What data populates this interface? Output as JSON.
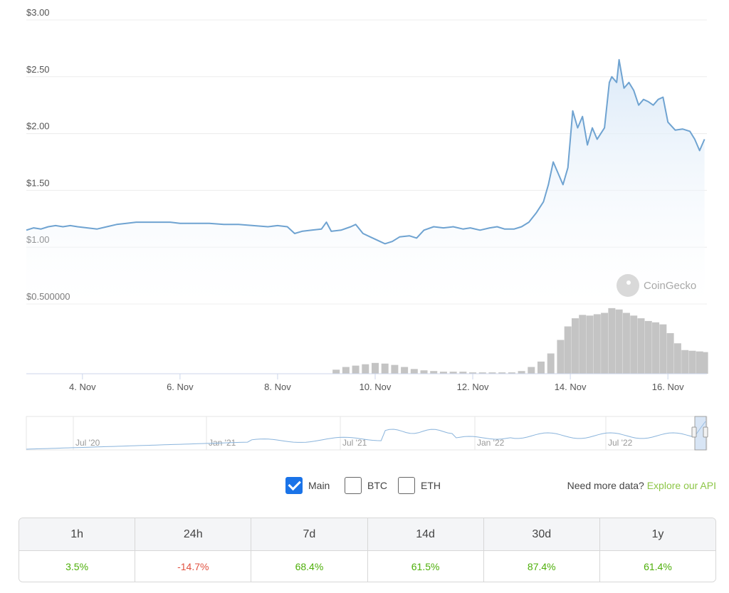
{
  "chart_data": {
    "type": "line",
    "y_axis": {
      "ticks": [
        "$3.00",
        "$2.50",
        "$2.00",
        "$1.50",
        "$1.00",
        "$0.500000"
      ],
      "ylim": [
        0.5,
        3.0
      ]
    },
    "x_axis": {
      "ticks": [
        "4. Nov",
        "6. Nov",
        "8. Nov",
        "10. Nov",
        "12. Nov",
        "14. Nov",
        "16. Nov"
      ],
      "xlim_days": [
        2.85,
        16.8
      ]
    },
    "series": [
      {
        "points": [
          [
            2.85,
            1.15
          ],
          [
            3.0,
            1.17
          ],
          [
            3.15,
            1.16
          ],
          [
            3.3,
            1.18
          ],
          [
            3.45,
            1.19
          ],
          [
            3.6,
            1.18
          ],
          [
            3.75,
            1.19
          ],
          [
            3.9,
            1.18
          ],
          [
            4.1,
            1.17
          ],
          [
            4.3,
            1.16
          ],
          [
            4.5,
            1.18
          ],
          [
            4.7,
            1.2
          ],
          [
            4.9,
            1.21
          ],
          [
            5.1,
            1.22
          ],
          [
            5.3,
            1.22
          ],
          [
            5.5,
            1.22
          ],
          [
            5.8,
            1.22
          ],
          [
            6.0,
            1.21
          ],
          [
            6.3,
            1.21
          ],
          [
            6.6,
            1.21
          ],
          [
            6.9,
            1.2
          ],
          [
            7.2,
            1.2
          ],
          [
            7.5,
            1.19
          ],
          [
            7.8,
            1.18
          ],
          [
            8.0,
            1.19
          ],
          [
            8.2,
            1.18
          ],
          [
            8.35,
            1.12
          ],
          [
            8.5,
            1.14
          ],
          [
            8.7,
            1.15
          ],
          [
            8.9,
            1.16
          ],
          [
            9.0,
            1.22
          ],
          [
            9.1,
            1.14
          ],
          [
            9.3,
            1.15
          ],
          [
            9.5,
            1.18
          ],
          [
            9.6,
            1.2
          ],
          [
            9.75,
            1.12
          ],
          [
            9.9,
            1.09
          ],
          [
            10.1,
            1.05
          ],
          [
            10.2,
            1.03
          ],
          [
            10.35,
            1.05
          ],
          [
            10.5,
            1.09
          ],
          [
            10.7,
            1.1
          ],
          [
            10.85,
            1.08
          ],
          [
            11.0,
            1.15
          ],
          [
            11.2,
            1.18
          ],
          [
            11.4,
            1.17
          ],
          [
            11.6,
            1.18
          ],
          [
            11.8,
            1.16
          ],
          [
            11.95,
            1.17
          ],
          [
            12.15,
            1.15
          ],
          [
            12.35,
            1.17
          ],
          [
            12.5,
            1.18
          ],
          [
            12.65,
            1.16
          ],
          [
            12.85,
            1.16
          ],
          [
            13.0,
            1.18
          ],
          [
            13.15,
            1.22
          ],
          [
            13.3,
            1.3
          ],
          [
            13.45,
            1.4
          ],
          [
            13.55,
            1.55
          ],
          [
            13.65,
            1.75
          ],
          [
            13.75,
            1.65
          ],
          [
            13.85,
            1.55
          ],
          [
            13.95,
            1.7
          ],
          [
            14.0,
            1.95
          ],
          [
            14.05,
            2.2
          ],
          [
            14.15,
            2.05
          ],
          [
            14.25,
            2.15
          ],
          [
            14.35,
            1.9
          ],
          [
            14.45,
            2.05
          ],
          [
            14.55,
            1.95
          ],
          [
            14.7,
            2.05
          ],
          [
            14.8,
            2.45
          ],
          [
            14.85,
            2.5
          ],
          [
            14.95,
            2.45
          ],
          [
            15.0,
            2.65
          ],
          [
            15.1,
            2.4
          ],
          [
            15.2,
            2.45
          ],
          [
            15.3,
            2.38
          ],
          [
            15.4,
            2.25
          ],
          [
            15.5,
            2.3
          ],
          [
            15.6,
            2.28
          ],
          [
            15.7,
            2.25
          ],
          [
            15.8,
            2.3
          ],
          [
            15.9,
            2.32
          ],
          [
            16.0,
            2.1
          ],
          [
            16.15,
            2.03
          ],
          [
            16.3,
            2.04
          ],
          [
            16.45,
            2.02
          ],
          [
            16.55,
            1.95
          ],
          [
            16.65,
            1.85
          ],
          [
            16.75,
            1.95
          ]
        ]
      }
    ],
    "volume": [
      [
        9.2,
        0.06
      ],
      [
        9.4,
        0.1
      ],
      [
        9.6,
        0.12
      ],
      [
        9.8,
        0.14
      ],
      [
        10.0,
        0.16
      ],
      [
        10.2,
        0.15
      ],
      [
        10.4,
        0.13
      ],
      [
        10.6,
        0.1
      ],
      [
        10.8,
        0.07
      ],
      [
        11.0,
        0.05
      ],
      [
        11.2,
        0.04
      ],
      [
        11.4,
        0.03
      ],
      [
        11.6,
        0.03
      ],
      [
        11.8,
        0.03
      ],
      [
        12.0,
        0.02
      ],
      [
        12.2,
        0.02
      ],
      [
        12.4,
        0.02
      ],
      [
        12.6,
        0.02
      ],
      [
        12.8,
        0.02
      ],
      [
        13.0,
        0.04
      ],
      [
        13.2,
        0.1
      ],
      [
        13.4,
        0.18
      ],
      [
        13.6,
        0.3
      ],
      [
        13.8,
        0.5
      ],
      [
        13.95,
        0.7
      ],
      [
        14.1,
        0.82
      ],
      [
        14.25,
        0.87
      ],
      [
        14.4,
        0.86
      ],
      [
        14.55,
        0.88
      ],
      [
        14.7,
        0.9
      ],
      [
        14.85,
        0.97
      ],
      [
        15.0,
        0.95
      ],
      [
        15.15,
        0.9
      ],
      [
        15.3,
        0.86
      ],
      [
        15.45,
        0.82
      ],
      [
        15.6,
        0.78
      ],
      [
        15.75,
        0.76
      ],
      [
        15.9,
        0.73
      ],
      [
        16.05,
        0.6
      ],
      [
        16.2,
        0.45
      ],
      [
        16.35,
        0.35
      ],
      [
        16.5,
        0.34
      ],
      [
        16.65,
        0.33
      ],
      [
        16.75,
        0.32
      ]
    ],
    "navigator": {
      "ticks": [
        "Jul '20",
        "Jan '21",
        "Jul '21",
        "Jan '22",
        "Jul '22"
      ]
    },
    "watermark": "CoinGecko",
    "colors": {
      "line": "#6fa3d1",
      "area": "#e9f2fb",
      "volume": "#c4c4c4"
    }
  },
  "controls": {
    "options": [
      {
        "label": "Main",
        "checked": true
      },
      {
        "label": "BTC",
        "checked": false
      },
      {
        "label": "ETH",
        "checked": false
      }
    ],
    "api_prompt": "Need more data?",
    "api_link": "Explore our API"
  },
  "performance": {
    "headers": [
      "1h",
      "24h",
      "7d",
      "14d",
      "30d",
      "1y"
    ],
    "values": [
      {
        "text": "3.5%",
        "sign": "pos"
      },
      {
        "text": "-14.7%",
        "sign": "neg"
      },
      {
        "text": "68.4%",
        "sign": "pos"
      },
      {
        "text": "61.5%",
        "sign": "pos"
      },
      {
        "text": "87.4%",
        "sign": "pos"
      },
      {
        "text": "61.4%",
        "sign": "pos"
      }
    ]
  }
}
